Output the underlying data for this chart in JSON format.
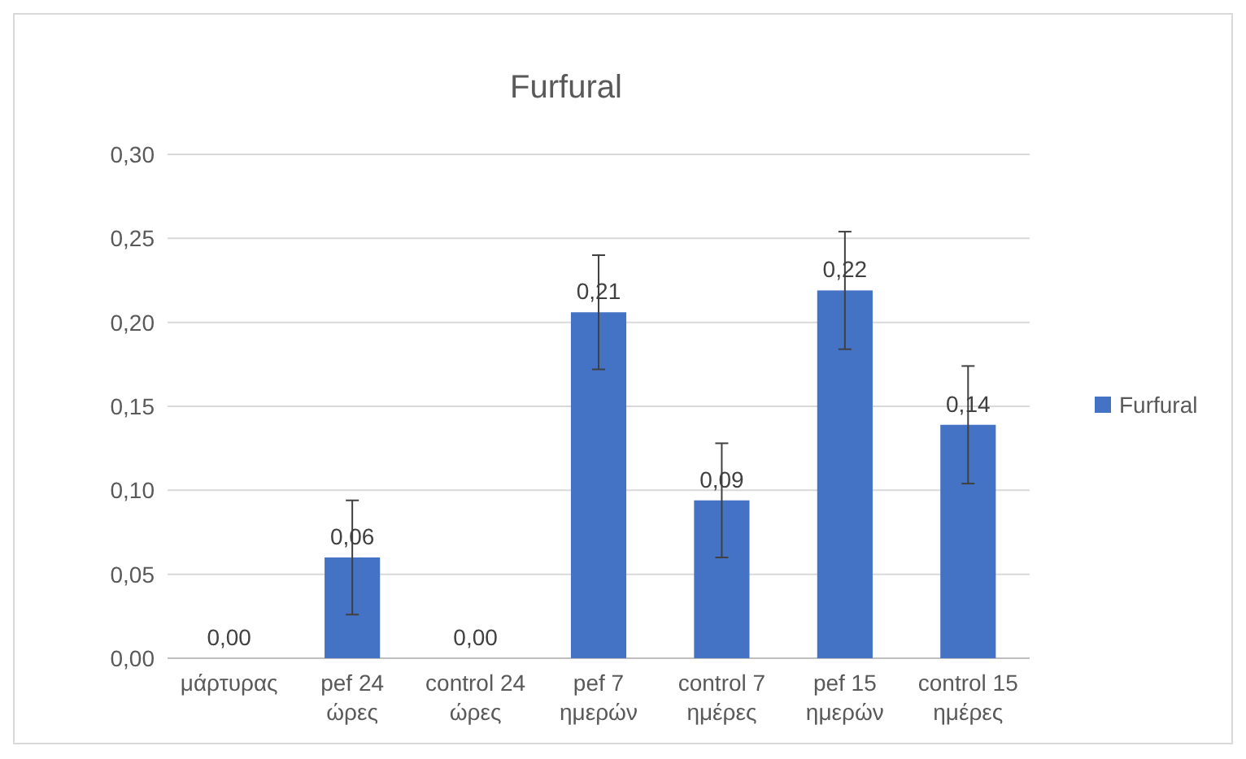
{
  "chart_data": {
    "type": "bar",
    "title": "Furfural",
    "categories": [
      "μάρτυρας",
      "pef 24 ώρες",
      "control 24 ώρες",
      "pef 7 ημερών",
      "control 7 ημέρες",
      "pef 15 ημερών",
      "control 15 ημέρες"
    ],
    "series": [
      {
        "name": "Furfural",
        "color": "#4472c4",
        "values": [
          0,
          0.06,
          0,
          0.206,
          0.094,
          0.219,
          0.139
        ],
        "errors": [
          null,
          0.034,
          null,
          0.034,
          0.034,
          0.035,
          0.035
        ],
        "value_labels": [
          "0,00",
          "0,06",
          "0,00",
          "0,21",
          "0,09",
          "0,22",
          "0,14"
        ]
      }
    ],
    "ylim": [
      0,
      0.3
    ],
    "yticks": [
      {
        "value": 0,
        "label": "0,00"
      },
      {
        "value": 0.05,
        "label": "0,05"
      },
      {
        "value": 0.1,
        "label": "0,10"
      },
      {
        "value": 0.15,
        "label": "0,15"
      },
      {
        "value": 0.2,
        "label": "0,20"
      },
      {
        "value": 0.25,
        "label": "0,25"
      },
      {
        "value": 0.3,
        "label": "0,30"
      }
    ],
    "grid": "y",
    "legend": "right"
  }
}
